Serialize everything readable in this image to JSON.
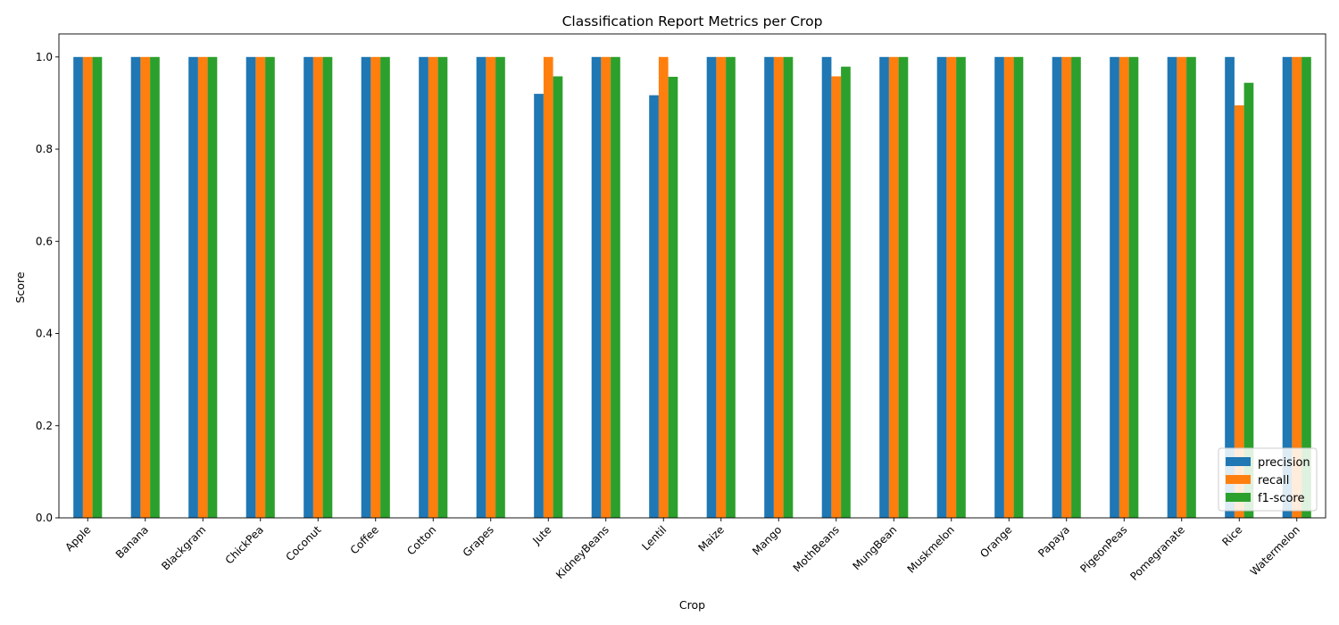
{
  "chart_data": {
    "type": "bar",
    "title": "Classification Report Metrics per Crop",
    "xlabel": "Crop",
    "ylabel": "Score",
    "ylim": [
      0,
      1.05
    ],
    "yticks": [
      "0.0",
      "0.2",
      "0.4",
      "0.6",
      "0.8",
      "1.0"
    ],
    "grid": false,
    "legend_position": "bottom-right",
    "categories": [
      "Apple",
      "Banana",
      "Blackgram",
      "ChickPea",
      "Coconut",
      "Coffee",
      "Cotton",
      "Grapes",
      "Jute",
      "KidneyBeans",
      "Lentil",
      "Maize",
      "Mango",
      "MothBeans",
      "MungBean",
      "Muskmelon",
      "Orange",
      "Papaya",
      "PigeonPeas",
      "Pomegranate",
      "Rice",
      "Watermelon"
    ],
    "series": [
      {
        "name": "precision",
        "color": "#1f77b4",
        "values": [
          1.0,
          1.0,
          1.0,
          1.0,
          1.0,
          1.0,
          1.0,
          1.0,
          0.92,
          1.0,
          0.917,
          1.0,
          1.0,
          1.0,
          1.0,
          1.0,
          1.0,
          1.0,
          1.0,
          1.0,
          1.0,
          1.0
        ]
      },
      {
        "name": "recall",
        "color": "#ff7f0e",
        "values": [
          1.0,
          1.0,
          1.0,
          1.0,
          1.0,
          1.0,
          1.0,
          1.0,
          1.0,
          1.0,
          1.0,
          1.0,
          1.0,
          0.958,
          1.0,
          1.0,
          1.0,
          1.0,
          1.0,
          1.0,
          0.895,
          1.0
        ]
      },
      {
        "name": "f1-score",
        "color": "#2ca02c",
        "values": [
          1.0,
          1.0,
          1.0,
          1.0,
          1.0,
          1.0,
          1.0,
          1.0,
          0.958,
          1.0,
          0.957,
          1.0,
          1.0,
          0.979,
          1.0,
          1.0,
          1.0,
          1.0,
          1.0,
          1.0,
          0.944,
          1.0
        ]
      }
    ]
  }
}
